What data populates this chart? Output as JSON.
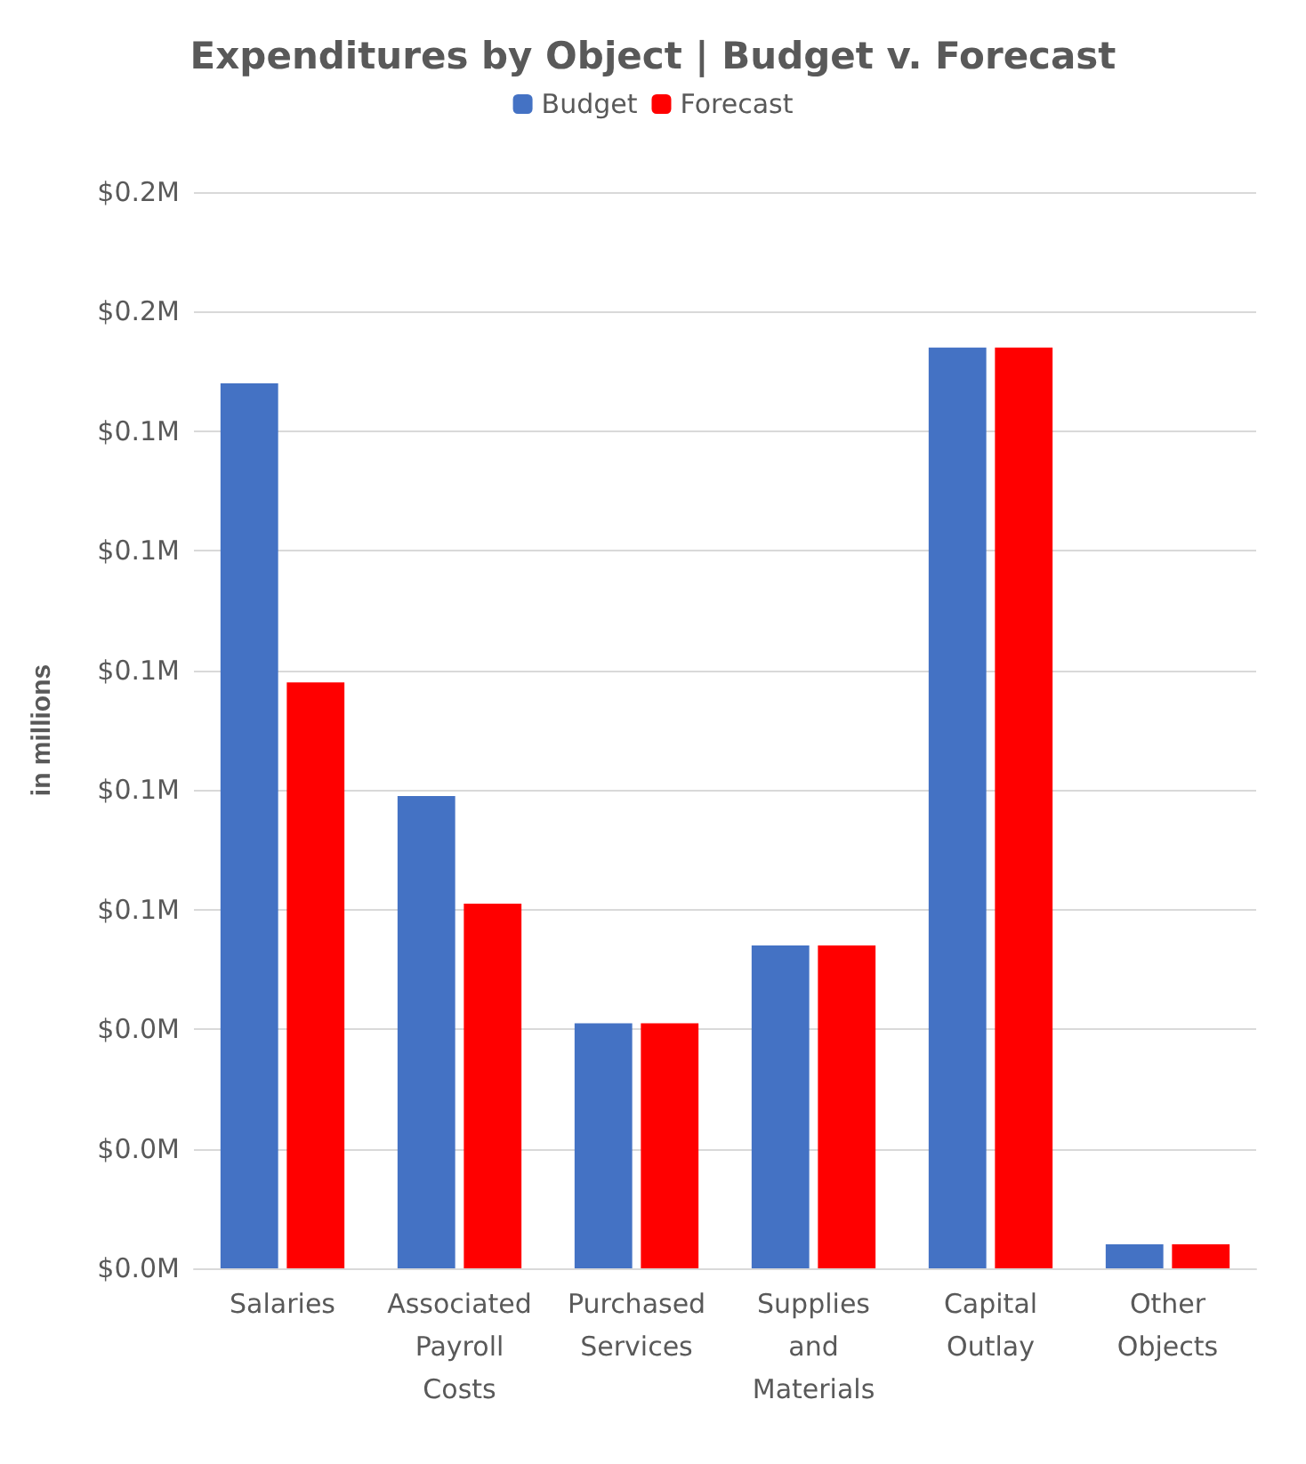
{
  "chart_data": {
    "type": "bar",
    "title": "Expenditures by Object | Budget v. Forecast",
    "ylabel": "in millions",
    "categories": [
      "Salaries",
      "Associated Payroll Costs",
      "Purchased Services",
      "Supplies and Materials",
      "Capital Outlay",
      "Other Objects"
    ],
    "series": [
      {
        "name": "Budget",
        "color": "#4472c4",
        "values": [
          0.148,
          0.079,
          0.041,
          0.054,
          0.154,
          0.004
        ]
      },
      {
        "name": "Forecast",
        "color": "#ff0000",
        "values": [
          0.098,
          0.061,
          0.041,
          0.054,
          0.154,
          0.004
        ]
      }
    ],
    "ylim": [
      0,
      0.18
    ],
    "yticks": [
      {
        "value": 0,
        "label": "$0.0M"
      },
      {
        "value": 0.02,
        "label": "$0.0M"
      },
      {
        "value": 0.04,
        "label": "$0.0M"
      },
      {
        "value": 0.06,
        "label": "$0.1M"
      },
      {
        "value": 0.08,
        "label": "$0.1M"
      },
      {
        "value": 0.1,
        "label": "$0.1M"
      },
      {
        "value": 0.12,
        "label": "$0.1M"
      },
      {
        "value": 0.14,
        "label": "$0.1M"
      },
      {
        "value": 0.16,
        "label": "$0.2M"
      },
      {
        "value": 0.18,
        "label": "$0.2M"
      }
    ],
    "grid": "y",
    "legend": "top"
  }
}
